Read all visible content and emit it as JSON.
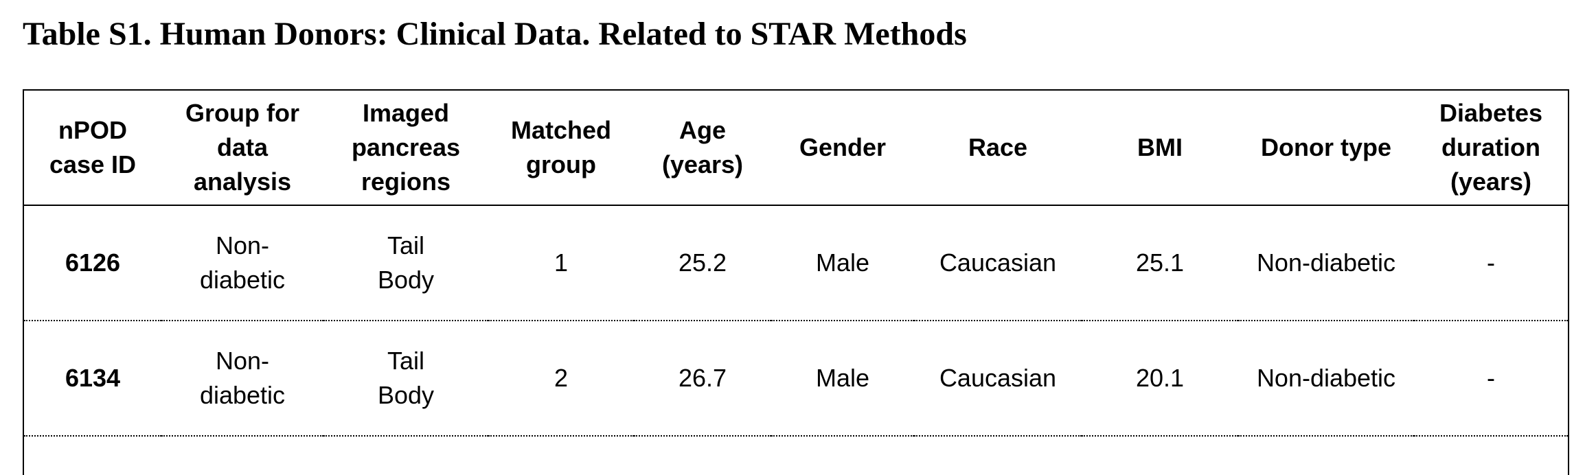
{
  "title": "Table S1. Human Donors: Clinical Data. Related to STAR Methods",
  "columns": [
    "nPOD case ID",
    "Group for data analysis",
    "Imaged pancreas regions",
    "Matched group",
    "Age (years)",
    "Gender",
    "Race",
    "BMI",
    "Donor type",
    "Diabetes duration (years)"
  ],
  "column_lines": [
    [
      "nPOD",
      "case ID"
    ],
    [
      "Group for",
      "data",
      "analysis"
    ],
    [
      "Imaged",
      "pancreas",
      "regions"
    ],
    [
      "Matched",
      "group"
    ],
    [
      "Age",
      "(years)"
    ],
    [
      "Gender"
    ],
    [
      "Race"
    ],
    [
      "BMI"
    ],
    [
      "Donor type"
    ],
    [
      "Diabetes",
      "duration",
      "(years)"
    ]
  ],
  "rows": [
    {
      "case_id": "6126",
      "group_lines": [
        "Non-",
        "diabetic"
      ],
      "regions": [
        "Tail",
        "Body"
      ],
      "matched_group": "1",
      "age": "25.2",
      "gender": "Male",
      "race": "Caucasian",
      "bmi": "25.1",
      "donor_type": "Non-diabetic",
      "diabetes_duration": "-"
    },
    {
      "case_id": "6134",
      "group_lines": [
        "Non-",
        "diabetic"
      ],
      "regions": [
        "Tail",
        "Body"
      ],
      "matched_group": "2",
      "age": "26.7",
      "gender": "Male",
      "race": "Caucasian",
      "bmi": "20.1",
      "donor_type": "Non-diabetic",
      "diabetes_duration": "-"
    }
  ]
}
